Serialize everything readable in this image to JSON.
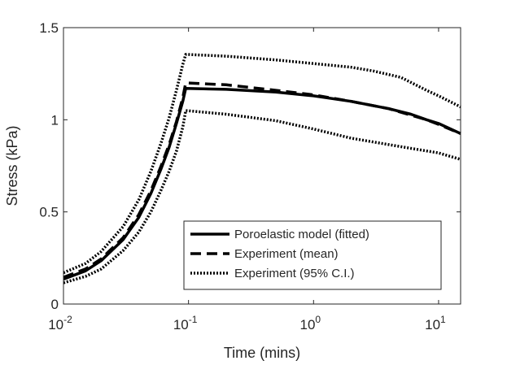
{
  "chart_data": {
    "type": "line",
    "title": "",
    "xlabel": "Time (mins)",
    "ylabel": "Stress (kPa)",
    "xscale": "log",
    "xlim": [
      0.01,
      15
    ],
    "ylim": [
      0,
      1.5
    ],
    "xticks": [
      {
        "value": 0.01,
        "base": "10",
        "exp": "-2"
      },
      {
        "value": 0.1,
        "base": "10",
        "exp": "-1"
      },
      {
        "value": 1,
        "base": "10",
        "exp": "0"
      },
      {
        "value": 10,
        "base": "10",
        "exp": "1"
      }
    ],
    "yticks": [
      {
        "value": 0,
        "label": "0"
      },
      {
        "value": 0.5,
        "label": "0.5"
      },
      {
        "value": 1,
        "label": "1"
      },
      {
        "value": 1.5,
        "label": "1.5"
      }
    ],
    "grid": false,
    "legend_position": "bottom-right",
    "series": [
      {
        "name": "Poroelastic model (fitted)",
        "style": "solid",
        "color": "#000000",
        "points": [
          [
            0.01,
            0.135
          ],
          [
            0.015,
            0.18
          ],
          [
            0.02,
            0.235
          ],
          [
            0.03,
            0.35
          ],
          [
            0.04,
            0.47
          ],
          [
            0.05,
            0.6
          ],
          [
            0.06,
            0.73
          ],
          [
            0.07,
            0.85
          ],
          [
            0.08,
            0.98
          ],
          [
            0.09,
            1.1
          ],
          [
            0.095,
            1.17
          ],
          [
            0.2,
            1.165
          ],
          [
            0.5,
            1.15
          ],
          [
            1,
            1.13
          ],
          [
            2,
            1.1
          ],
          [
            4,
            1.06
          ],
          [
            6,
            1.03
          ],
          [
            8,
            1.0
          ],
          [
            10,
            0.98
          ],
          [
            15,
            0.925
          ]
        ]
      },
      {
        "name": "Experiment (mean)",
        "style": "dashed",
        "color": "#000000",
        "points": [
          [
            0.01,
            0.145
          ],
          [
            0.015,
            0.19
          ],
          [
            0.02,
            0.245
          ],
          [
            0.03,
            0.36
          ],
          [
            0.04,
            0.485
          ],
          [
            0.05,
            0.615
          ],
          [
            0.06,
            0.745
          ],
          [
            0.07,
            0.865
          ],
          [
            0.08,
            0.99
          ],
          [
            0.09,
            1.12
          ],
          [
            0.095,
            1.2
          ],
          [
            0.2,
            1.19
          ],
          [
            0.5,
            1.16
          ],
          [
            1,
            1.135
          ],
          [
            2,
            1.1
          ],
          [
            4,
            1.06
          ],
          [
            6,
            1.025
          ],
          [
            8,
            1.0
          ],
          [
            10,
            0.975
          ],
          [
            15,
            0.925
          ]
        ]
      },
      {
        "name": "Experiment (95% C.I.)",
        "style": "dotted",
        "color": "#000000",
        "points": [
          [
            0.01,
            0.17
          ],
          [
            0.015,
            0.22
          ],
          [
            0.02,
            0.285
          ],
          [
            0.03,
            0.42
          ],
          [
            0.04,
            0.565
          ],
          [
            0.05,
            0.72
          ],
          [
            0.06,
            0.87
          ],
          [
            0.07,
            1.01
          ],
          [
            0.08,
            1.16
          ],
          [
            0.09,
            1.3
          ],
          [
            0.095,
            1.355
          ],
          [
            0.2,
            1.345
          ],
          [
            0.5,
            1.325
          ],
          [
            1,
            1.305
          ],
          [
            2,
            1.285
          ],
          [
            3,
            1.265
          ],
          [
            5,
            1.23
          ],
          [
            8,
            1.16
          ],
          [
            10,
            1.13
          ],
          [
            15,
            1.07
          ]
        ]
      },
      {
        "name": "Experiment (95% C.I.) lower",
        "style": "dotted",
        "color": "#000000",
        "legend": false,
        "points": [
          [
            0.01,
            0.115
          ],
          [
            0.015,
            0.15
          ],
          [
            0.02,
            0.19
          ],
          [
            0.03,
            0.29
          ],
          [
            0.04,
            0.39
          ],
          [
            0.05,
            0.5
          ],
          [
            0.06,
            0.615
          ],
          [
            0.07,
            0.72
          ],
          [
            0.08,
            0.83
          ],
          [
            0.09,
            0.96
          ],
          [
            0.095,
            1.05
          ],
          [
            0.2,
            1.03
          ],
          [
            0.5,
            0.995
          ],
          [
            1,
            0.95
          ],
          [
            2,
            0.9
          ],
          [
            4,
            0.865
          ],
          [
            6,
            0.845
          ],
          [
            10,
            0.82
          ],
          [
            15,
            0.785
          ]
        ]
      }
    ]
  }
}
